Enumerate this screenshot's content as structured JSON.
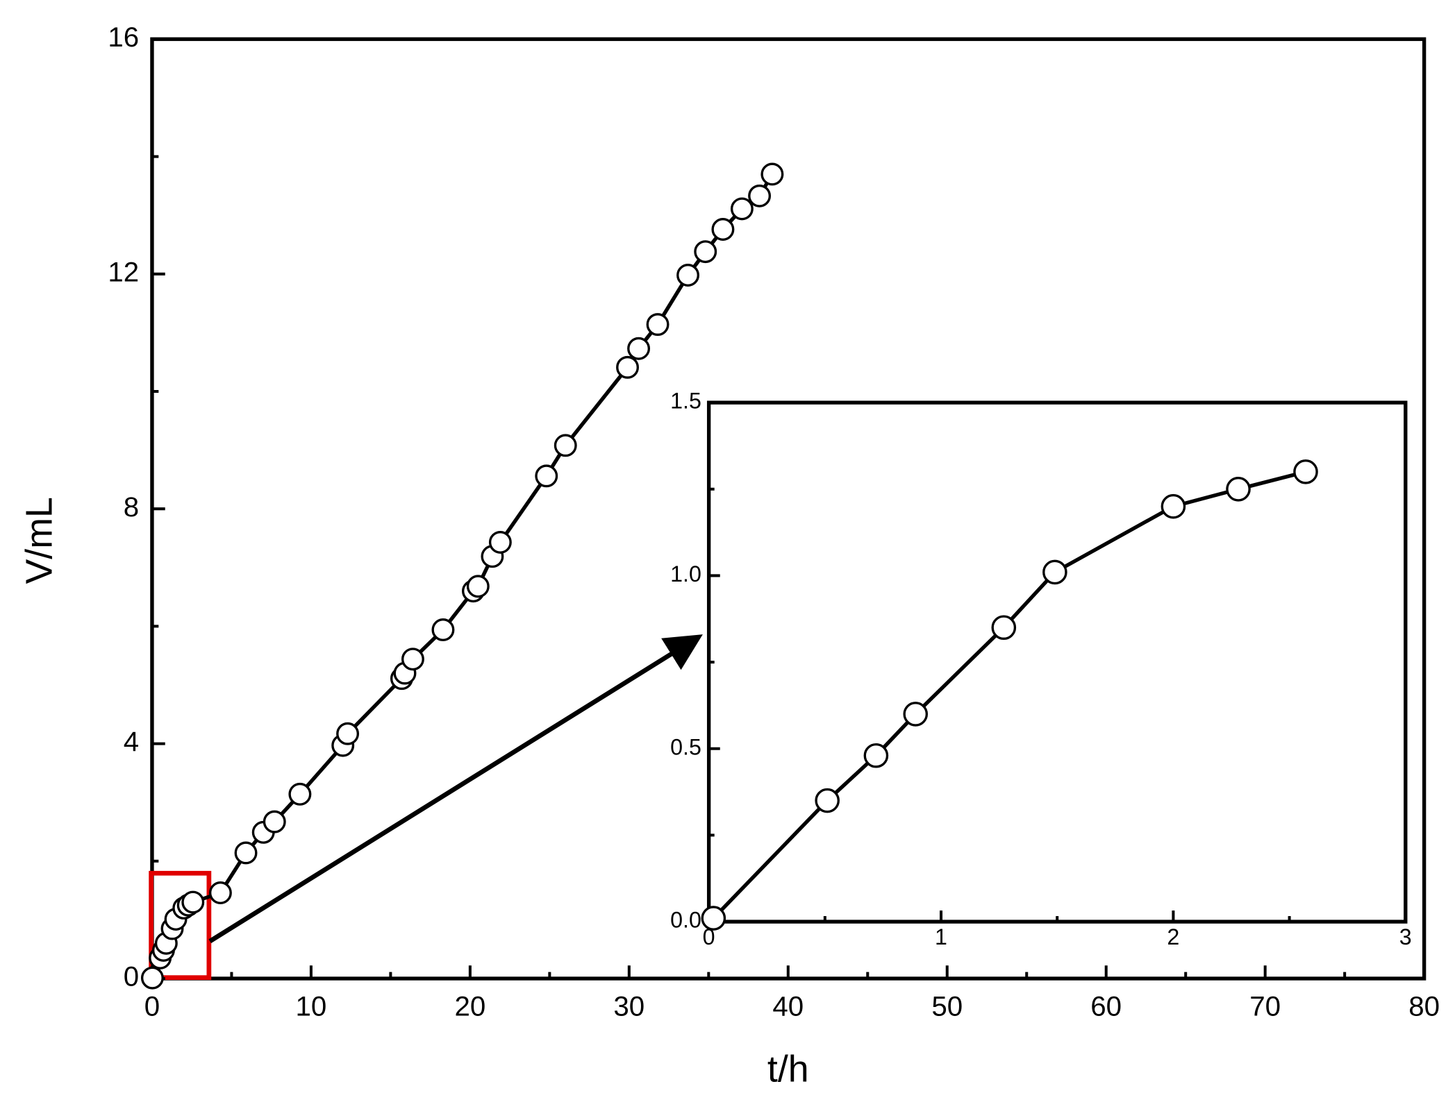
{
  "chart_data": [
    {
      "type": "line",
      "xlabel": "t/h",
      "ylabel": "V/mL",
      "xlim": [
        0,
        80
      ],
      "xticks": [
        0,
        10,
        20,
        30,
        40,
        50,
        60,
        70,
        80
      ],
      "ylim": [
        0,
        16
      ],
      "yticks": [
        0,
        4,
        8,
        12,
        16
      ],
      "series": [
        {
          "color": "#000000",
          "x": [
            0.02,
            0.51,
            0.72,
            0.89,
            1.27,
            1.49,
            2.0,
            2.28,
            2.57,
            4.3,
            5.9,
            7.0,
            7.7,
            9.3,
            12.0,
            12.3,
            15.7,
            15.9,
            16.4,
            18.3,
            20.2,
            20.5,
            21.4,
            21.9,
            24.8,
            26.0,
            29.9,
            30.6,
            31.8,
            33.7,
            34.8,
            35.9,
            37.1,
            38.2,
            39.0
          ],
          "values": [
            0.01,
            0.35,
            0.48,
            0.6,
            0.85,
            1.01,
            1.2,
            1.25,
            1.3,
            1.46,
            2.14,
            2.49,
            2.67,
            3.14,
            3.97,
            4.17,
            5.11,
            5.2,
            5.44,
            5.94,
            6.6,
            6.68,
            7.19,
            7.43,
            8.56,
            9.08,
            10.41,
            10.73,
            11.14,
            11.98,
            12.38,
            12.76,
            13.11,
            13.33,
            13.7
          ]
        }
      ]
    },
    {
      "type": "line",
      "xlim": [
        0,
        3
      ],
      "xticks": [
        0,
        1,
        2,
        3
      ],
      "ylim": [
        0,
        1.5
      ],
      "yticks": [
        {
          "value": 0,
          "label": "0.0"
        },
        {
          "value": 0.5,
          "label": "0.5"
        },
        {
          "value": 1,
          "label": "1.0"
        },
        {
          "value": 1.5,
          "label": "1.5"
        }
      ],
      "series": [
        {
          "color": "#000000",
          "x": [
            0.02,
            0.51,
            0.72,
            0.89,
            1.27,
            1.49,
            2.0,
            2.28,
            2.57
          ],
          "values": [
            0.01,
            0.35,
            0.48,
            0.6,
            0.85,
            1.01,
            1.2,
            1.25,
            1.3
          ]
        }
      ]
    }
  ]
}
